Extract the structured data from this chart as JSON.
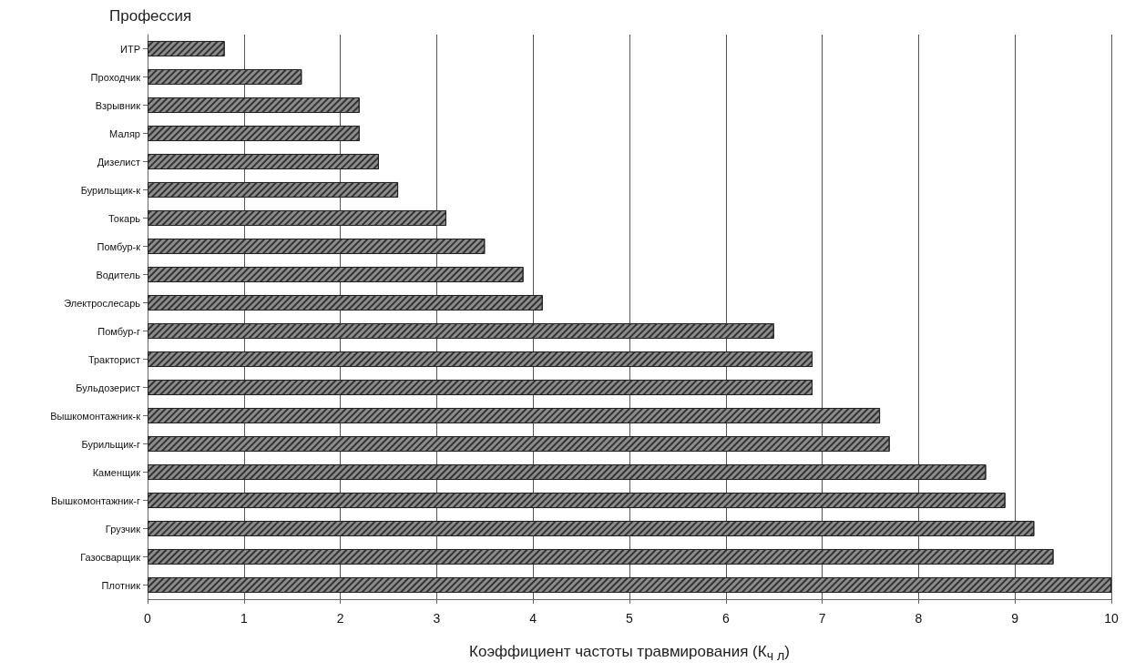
{
  "chart_data": {
    "type": "bar",
    "orientation": "horizontal",
    "ylabel": "Профессия",
    "xlabel": "Коэффициент частоты травмирования (К$_{ч л}$)",
    "categories": [
      "ИТР",
      "Проходчик",
      "Взрывник",
      "Маляр",
      "Дизелист",
      "Бурильщик-к",
      "Токарь",
      "Помбур-к",
      "Водитель",
      "Электрослесарь",
      "Помбур-г",
      "Тракторист",
      "Бульдозерист",
      "Вышкомонтажник-к",
      "Бурильщик-г",
      "Каменщик",
      "Вышкомонтажник-г",
      "Грузчик",
      "Газосварщик",
      "Плотник"
    ],
    "values": [
      0.8,
      1.6,
      2.2,
      2.2,
      2.4,
      2.6,
      3.1,
      3.5,
      3.9,
      4.1,
      6.5,
      6.9,
      6.9,
      7.6,
      7.7,
      8.7,
      8.9,
      9.2,
      9.4,
      10.0
    ],
    "color": "#8c8c8c",
    "xlim": [
      0,
      10
    ],
    "xticks": [
      0,
      1,
      2,
      3,
      4,
      5,
      6,
      7,
      8,
      9,
      10
    ],
    "grid": "x"
  }
}
